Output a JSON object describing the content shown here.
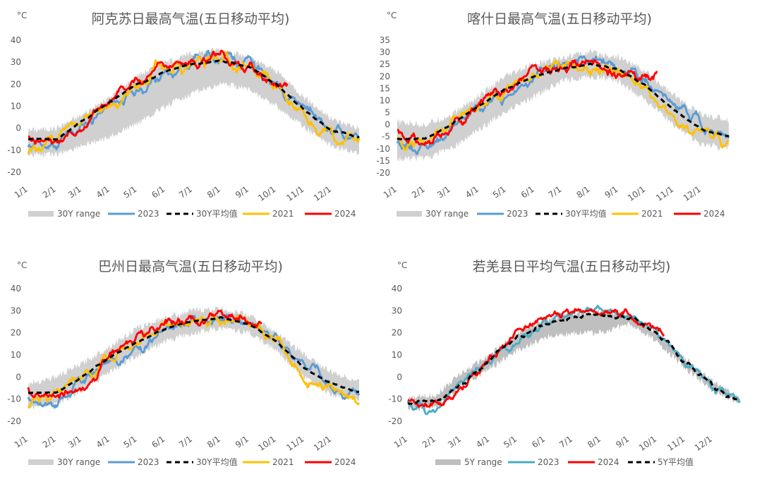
{
  "chart_data": [
    {
      "type": "line",
      "title": "阿克苏日最高气温(五日移动平均)",
      "unit_label": "°C",
      "ylim": [
        -20,
        40
      ],
      "yticks": [
        -20,
        -10,
        0,
        10,
        20,
        30,
        40
      ],
      "xticks": [
        "1/1",
        "2/1",
        "3/1",
        "4/1",
        "5/1",
        "6/1",
        "7/1",
        "8/1",
        "9/1",
        "10/1",
        "11/1",
        "12/1"
      ],
      "legend_placement": "bottom",
      "band": {
        "name": "30Y range",
        "color": "#d0d0d0",
        "lower": [
          -12,
          -12,
          -8,
          -4,
          2,
          10,
          16,
          20,
          18,
          10,
          0,
          -8,
          -12
        ],
        "upper": [
          -1,
          0,
          6,
          14,
          24,
          30,
          34,
          36,
          32,
          26,
          14,
          4,
          0
        ]
      },
      "series": [
        {
          "name": "2023",
          "color": "#5b9bd5",
          "dashed": false,
          "days": 365,
          "anchors": [
            -7,
            -8,
            1,
            10,
            17,
            24,
            31,
            33,
            30,
            20,
            10,
            -1,
            -5
          ],
          "amp": 3.2,
          "seed": 11
        },
        {
          "name": "30Y平均值",
          "color": "#000000",
          "dashed": true,
          "days": 365,
          "anchors": [
            -5,
            -5,
            3,
            12,
            20,
            26,
            29,
            31,
            28,
            20,
            8,
            -1,
            -4
          ],
          "amp": 0.4,
          "seed": 3
        },
        {
          "name": "2021",
          "color": "#ffc000",
          "dashed": false,
          "days": 365,
          "anchors": [
            -9,
            -5,
            3,
            10,
            20,
            27,
            30,
            31,
            28,
            19,
            5,
            -4,
            -7
          ],
          "amp": 3.4,
          "seed": 27
        },
        {
          "name": "2024",
          "color": "#ff0000",
          "dashed": false,
          "days": 286,
          "anchors": [
            -5,
            -6,
            -1,
            13,
            22,
            28,
            30,
            31,
            27,
            21,
            19
          ],
          "amp": 3.0,
          "seed": 41
        }
      ]
    },
    {
      "type": "line",
      "title": "喀什日最高气温(五日移动平均)",
      "unit_label": "°C",
      "ylim": [
        -20,
        35
      ],
      "yticks": [
        -20,
        -15,
        -10,
        -5,
        0,
        5,
        10,
        15,
        20,
        25,
        30,
        35
      ],
      "xticks": [
        "1/1",
        "2/1",
        "3/1",
        "4/1",
        "5/1",
        "6/1",
        "7/1",
        "8/1",
        "9/1",
        "10/1",
        "11/1",
        "12/1"
      ],
      "legend_placement": "bottom",
      "band": {
        "name": "30Y range",
        "color": "#d0d0d0",
        "lower": [
          -14,
          -14,
          -10,
          -2,
          6,
          12,
          18,
          20,
          18,
          10,
          0,
          -8,
          -10
        ],
        "upper": [
          1,
          0,
          4,
          12,
          20,
          25,
          28,
          30,
          28,
          22,
          12,
          4,
          2
        ]
      },
      "series": [
        {
          "name": "2023",
          "color": "#5b9bd5",
          "dashed": false,
          "days": 365,
          "anchors": [
            -8,
            -10,
            -2,
            7,
            13,
            21,
            25,
            27,
            24,
            18,
            8,
            0,
            -5
          ],
          "amp": 2.8,
          "seed": 13
        },
        {
          "name": "30Y平均值",
          "color": "#000000",
          "dashed": true,
          "days": 365,
          "anchors": [
            -6,
            -6,
            0,
            8,
            15,
            20,
            23,
            25,
            23,
            16,
            6,
            -2,
            -5
          ],
          "amp": 0.3,
          "seed": 5
        },
        {
          "name": "2021",
          "color": "#ffc000",
          "dashed": false,
          "days": 365,
          "anchors": [
            -9,
            -6,
            1,
            6,
            14,
            21,
            24,
            24,
            22,
            14,
            2,
            -4,
            -7
          ],
          "amp": 3.0,
          "seed": 29
        },
        {
          "name": "2024",
          "color": "#ff0000",
          "dashed": false,
          "days": 286,
          "anchors": [
            -5,
            -7,
            -3,
            10,
            16,
            22,
            25,
            27,
            21,
            20,
            21
          ],
          "amp": 2.8,
          "seed": 43
        }
      ]
    },
    {
      "type": "line",
      "title": "巴州日最高气温(五日移动平均)",
      "unit_label": "°C",
      "ylim": [
        -20,
        40
      ],
      "yticks": [
        -20,
        -10,
        0,
        10,
        20,
        30,
        40
      ],
      "xticks": [
        "1/1",
        "2/1",
        "3/1",
        "4/1",
        "5/1",
        "6/1",
        "7/1",
        "8/1",
        "9/1",
        "10/1",
        "11/1",
        "12/1"
      ],
      "legend_placement": "bottom",
      "band": {
        "name": "30Y range",
        "color": "#d0d0d0",
        "lower": [
          -14,
          -12,
          -6,
          2,
          10,
          16,
          20,
          22,
          20,
          12,
          0,
          -8,
          -10
        ],
        "upper": [
          -3,
          0,
          6,
          14,
          22,
          27,
          30,
          31,
          28,
          20,
          10,
          2,
          -2
        ]
      },
      "series": [
        {
          "name": "2023",
          "color": "#5b9bd5",
          "dashed": false,
          "days": 365,
          "anchors": [
            -10,
            -12,
            -2,
            7,
            13,
            20,
            26,
            27,
            25,
            18,
            6,
            -4,
            -7
          ],
          "amp": 2.8,
          "seed": 17
        },
        {
          "name": "30Y平均值",
          "color": "#000000",
          "dashed": true,
          "days": 365,
          "anchors": [
            -7,
            -7,
            0,
            9,
            16,
            22,
            25,
            27,
            24,
            16,
            4,
            -3,
            -7
          ],
          "amp": 0.3,
          "seed": 7
        },
        {
          "name": "2021",
          "color": "#ffc000",
          "dashed": false,
          "days": 365,
          "anchors": [
            -11,
            -8,
            0,
            8,
            17,
            22,
            26,
            27,
            24,
            18,
            -2,
            -6,
            -10
          ],
          "amp": 3.0,
          "seed": 31
        },
        {
          "name": "2024",
          "color": "#ff0000",
          "dashed": false,
          "days": 258,
          "anchors": [
            -8,
            -9,
            -6,
            10,
            19,
            24,
            26,
            28,
            25,
            19
          ],
          "amp": 2.8,
          "seed": 47
        }
      ]
    },
    {
      "type": "line",
      "title": "若羌县日平均气温(五日移动平均)",
      "unit_label": "°C",
      "ylim": [
        -20,
        40
      ],
      "yticks": [
        -20,
        -10,
        0,
        10,
        20,
        30,
        40
      ],
      "xticks": [
        "1/1",
        "2/1",
        "3/1",
        "4/1",
        "5/1",
        "6/1",
        "7/1",
        "8/1",
        "9/1",
        "10/1",
        "11/1",
        "12/1"
      ],
      "legend_placement": "bottom",
      "band": {
        "name": "5Y range",
        "color": "#bfbfbf",
        "lower": [
          -14,
          -14,
          -4,
          4,
          12,
          18,
          20,
          20,
          24,
          16,
          4,
          -6,
          -12
        ],
        "upper": [
          -10,
          -8,
          2,
          10,
          20,
          26,
          28,
          30,
          28,
          20,
          8,
          -2,
          -10
        ]
      },
      "series": [
        {
          "name": "2023",
          "color": "#4bacc6",
          "dashed": false,
          "days": 365,
          "anchors": [
            -13,
            -15,
            -2,
            8,
            16,
            25,
            30,
            30,
            28,
            20,
            7,
            -4,
            -11
          ],
          "amp": 2.2,
          "seed": 19
        },
        {
          "name": "2024",
          "color": "#ff0000",
          "dashed": false,
          "days": 282,
          "anchors": [
            -10,
            -13,
            -6,
            8,
            21,
            28,
            29,
            30,
            28,
            21,
            20
          ],
          "amp": 2.2,
          "seed": 53
        },
        {
          "name": "5Y平均值",
          "color": "#000000",
          "dashed": true,
          "days": 365,
          "anchors": [
            -12,
            -11,
            -3,
            8,
            18,
            24,
            27,
            28,
            27,
            20,
            6,
            -4,
            -12
          ],
          "amp": 1.2,
          "seed": 9
        }
      ]
    }
  ]
}
